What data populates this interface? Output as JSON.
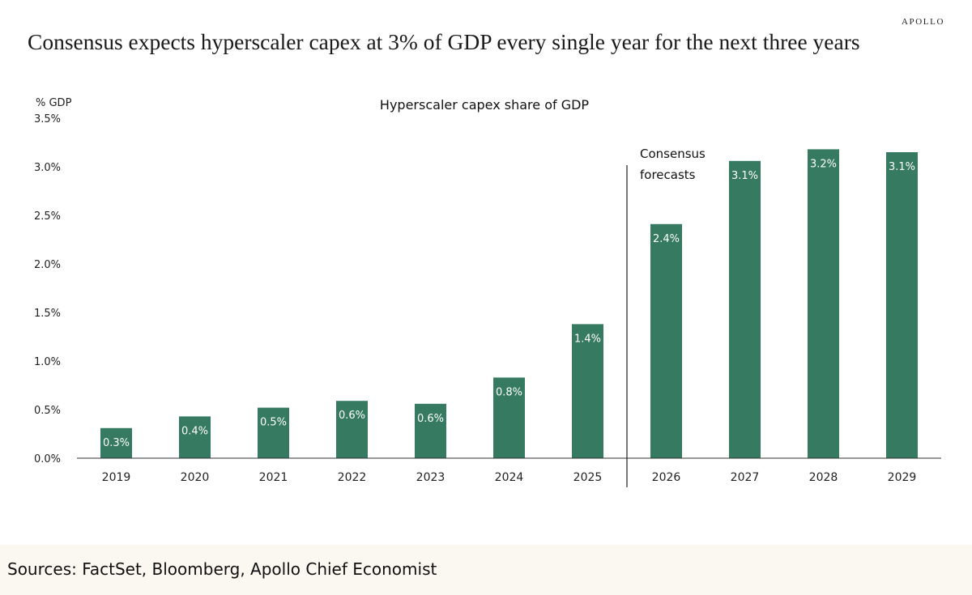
{
  "brand": "APOLLO",
  "headline": "Consensus expects hyperscaler capex at 3% of GDP every single year for the next three years",
  "footer": {
    "sources": "Sources: FactSet, Bloomberg, Apollo Chief Economist"
  },
  "colors": {
    "bar": "#367a62",
    "axis": "#333333",
    "label_text": "#ffffff"
  },
  "chart_data": {
    "type": "bar",
    "title": "Hyperscaler capex share of GDP",
    "ylabel": "% GDP",
    "ylim": [
      0,
      3.5
    ],
    "yticks": [
      "0.0%",
      "0.5%",
      "1.0%",
      "1.5%",
      "2.0%",
      "2.5%",
      "3.0%",
      "3.5%"
    ],
    "grid": false,
    "categories": [
      "2019",
      "2020",
      "2021",
      "2022",
      "2023",
      "2024",
      "2025",
      "2026",
      "2027",
      "2028",
      "2029"
    ],
    "values": [
      0.31,
      0.43,
      0.52,
      0.59,
      0.56,
      0.83,
      1.38,
      2.41,
      3.06,
      3.18,
      3.15
    ],
    "data_labels": [
      "0.3%",
      "0.4%",
      "0.5%",
      "0.6%",
      "0.6%",
      "0.8%",
      "1.4%",
      "2.4%",
      "3.1%",
      "3.2%",
      "3.1%"
    ],
    "annotation": {
      "text_line1": "Consensus",
      "text_line2": "forecasts",
      "divider_after_category": "2025"
    }
  }
}
